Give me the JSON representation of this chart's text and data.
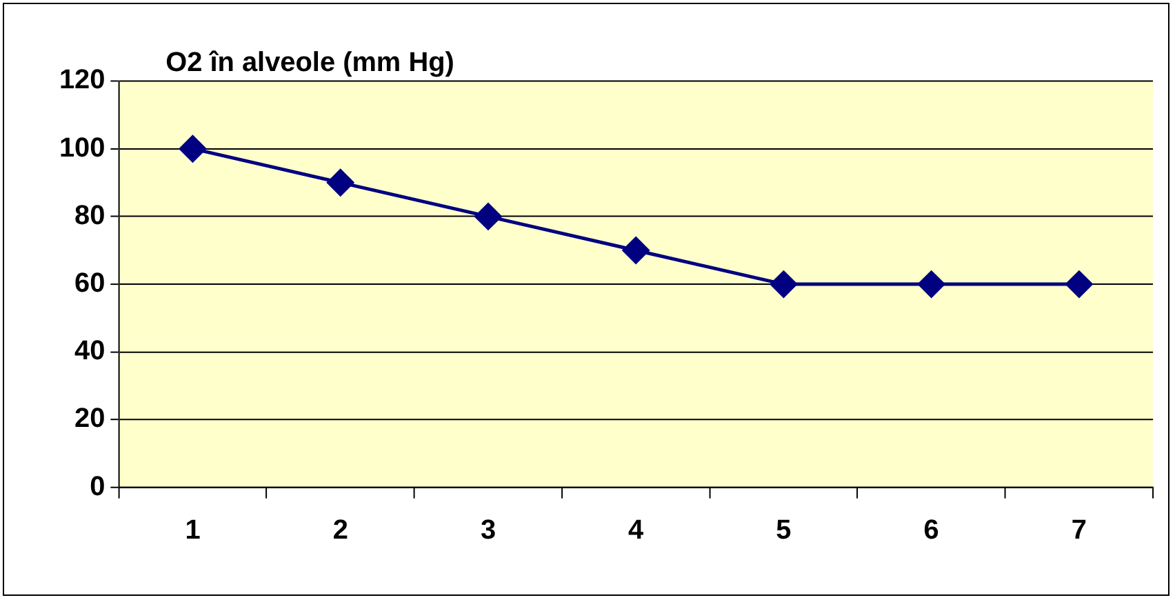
{
  "chart_data": {
    "type": "line",
    "title": "O2 în alveole (mm Hg)",
    "categories": [
      "1",
      "2",
      "3",
      "4",
      "5",
      "6",
      "7"
    ],
    "series": [
      {
        "color": "#000080",
        "values": [
          100,
          90,
          80,
          70,
          60,
          60,
          60
        ]
      }
    ],
    "ylim": [
      0,
      120
    ],
    "yticks": [
      0,
      20,
      40,
      60,
      80,
      100,
      120
    ],
    "grid": "y",
    "legend": false,
    "marker": "diamond",
    "line_style": "solid"
  }
}
